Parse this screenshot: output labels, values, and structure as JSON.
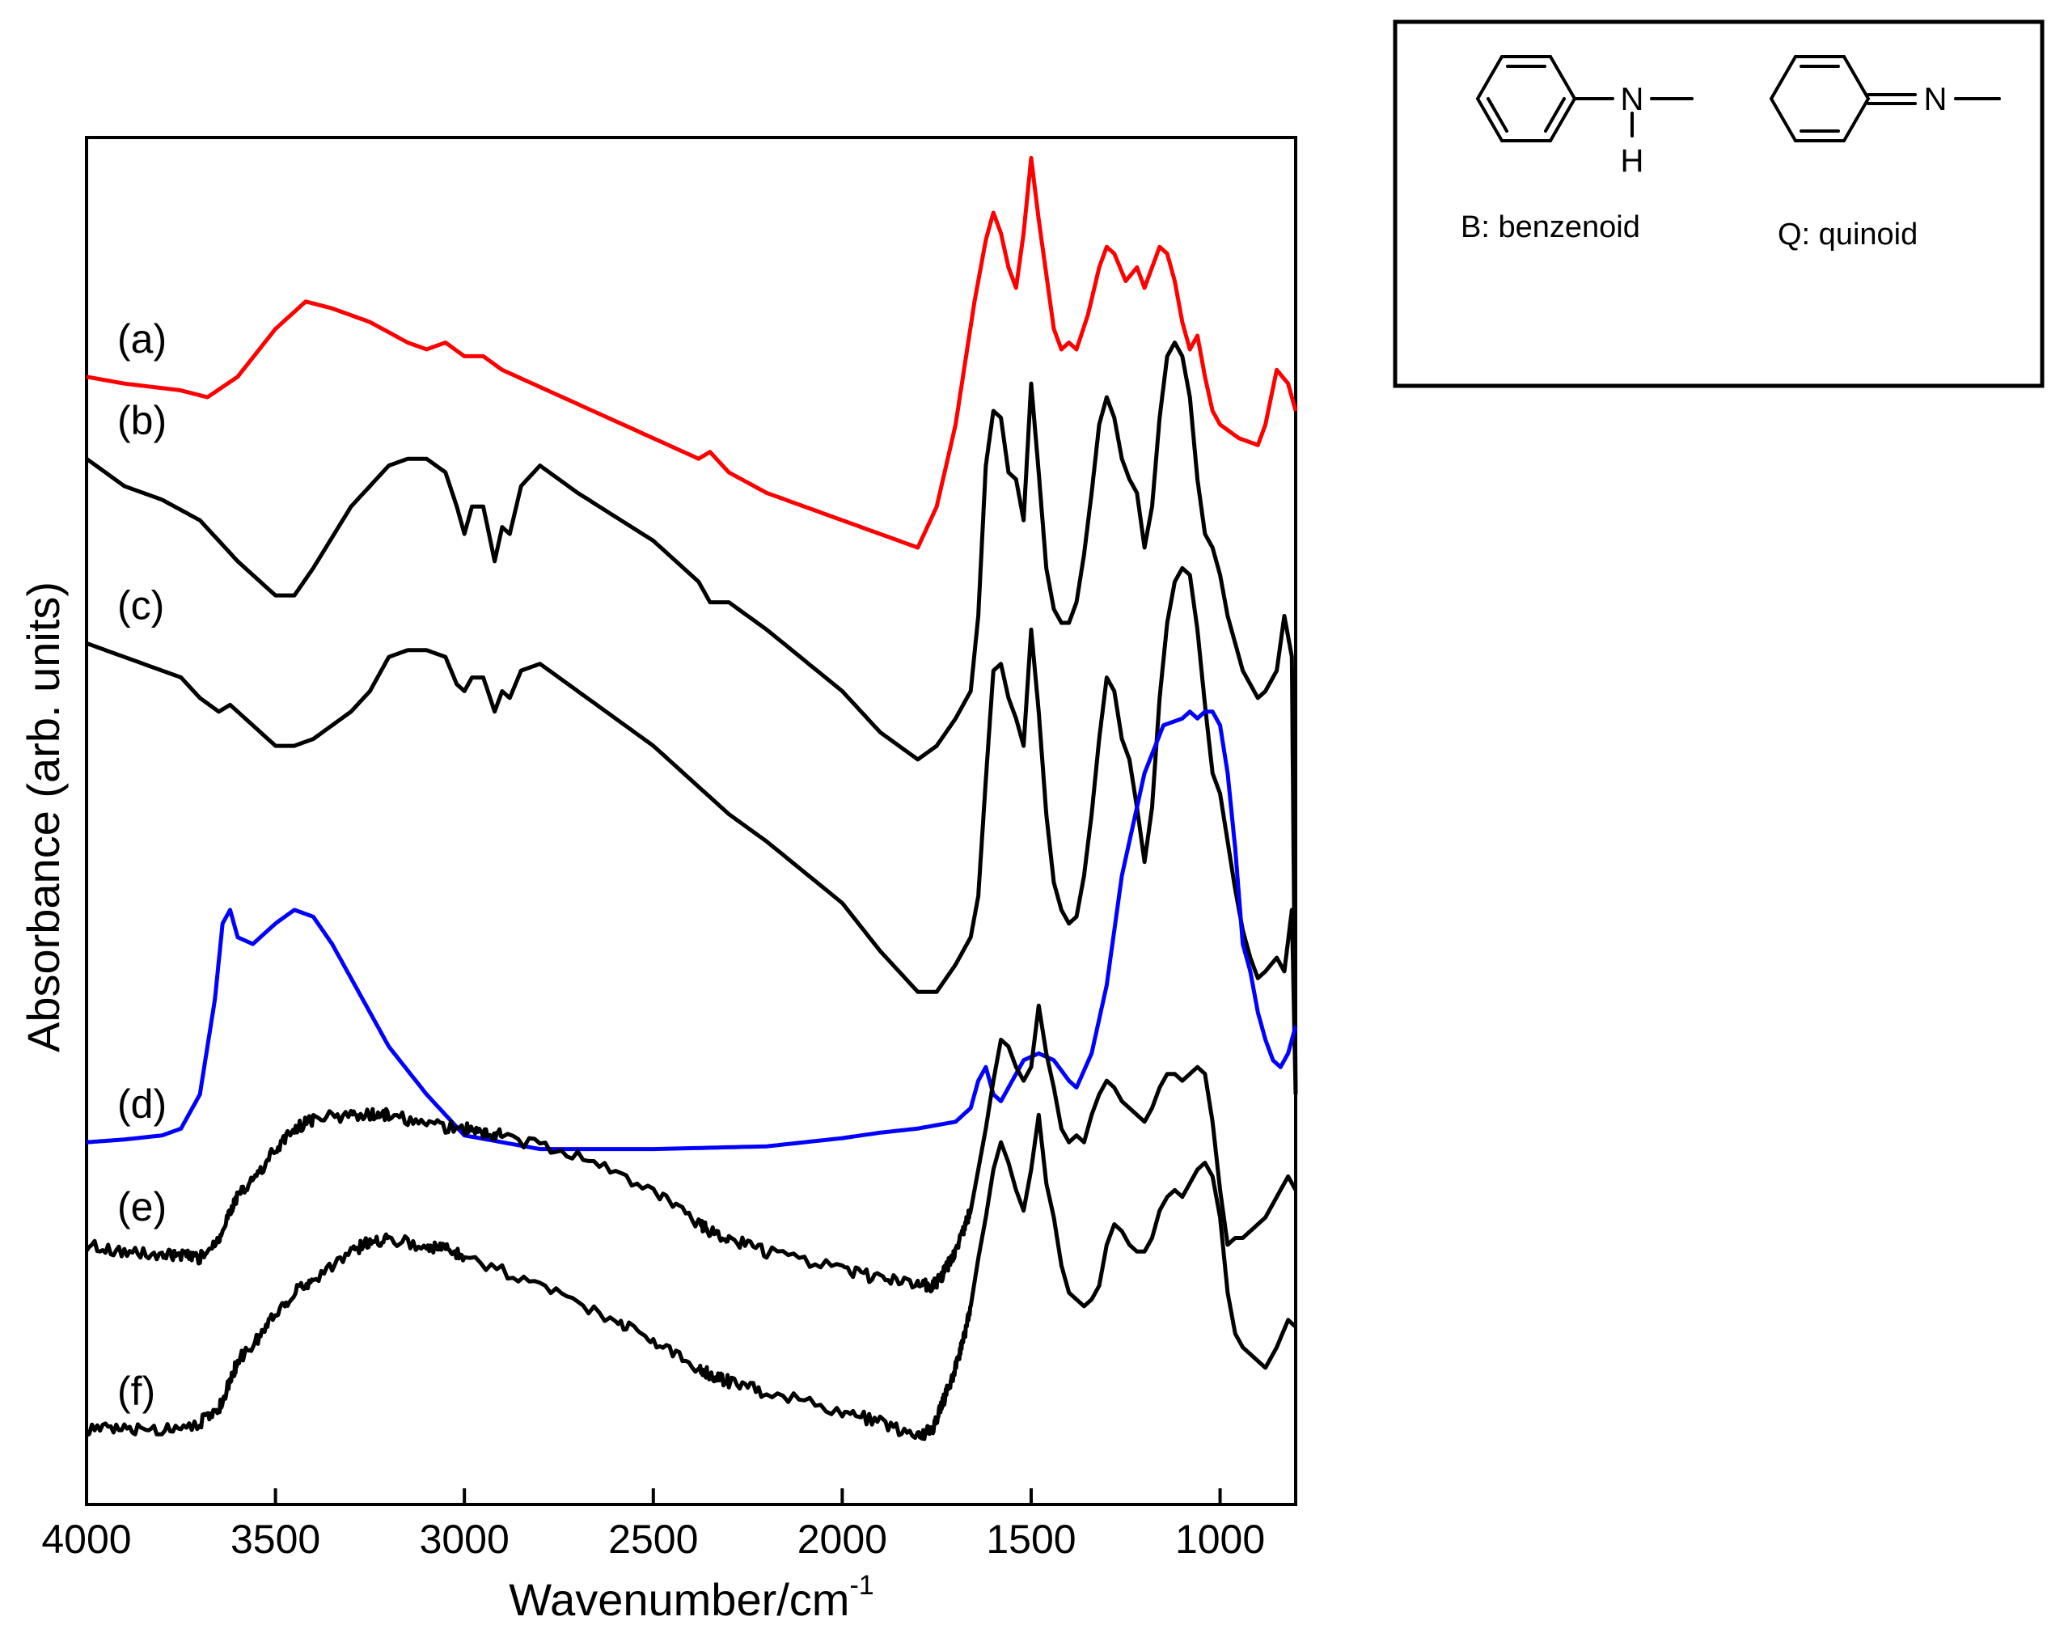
{
  "chart_data": {
    "type": "line",
    "title": "",
    "xlabel": "Wavenumber/cm",
    "xlabel_sup": "-1",
    "ylabel": "Absorbance (arb. units)",
    "x_reversed": true,
    "xlim": [
      4000,
      800
    ],
    "ylim": [
      0,
      10
    ],
    "y_ticks_shown": false,
    "grid": false,
    "x_ticks": [
      4000,
      3500,
      3000,
      2500,
      2000,
      1500,
      1000
    ],
    "x_tick_labels": [
      "4000",
      "3500",
      "3000",
      "2500",
      "2000",
      "1500",
      "1000"
    ],
    "series": [
      {
        "label": "(a)",
        "color": "#ff0000",
        "noisy": false,
        "x": [
          4000,
          3900,
          3750,
          3680,
          3600,
          3500,
          3420,
          3350,
          3250,
          3150,
          3100,
          3050,
          3000,
          2950,
          2900,
          2860,
          2700,
          2500,
          2380,
          2350,
          2300,
          2200,
          2100,
          2000,
          1900,
          1800,
          1750,
          1700,
          1650,
          1620,
          1600,
          1580,
          1560,
          1540,
          1520,
          1500,
          1480,
          1460,
          1440,
          1420,
          1400,
          1380,
          1350,
          1320,
          1300,
          1280,
          1250,
          1220,
          1200,
          1180,
          1160,
          1140,
          1120,
          1100,
          1080,
          1060,
          1040,
          1020,
          1000,
          950,
          900,
          880,
          850,
          820,
          800
        ],
        "y": [
          8.25,
          8.2,
          8.15,
          8.1,
          8.25,
          8.6,
          8.8,
          8.75,
          8.65,
          8.5,
          8.45,
          8.5,
          8.4,
          8.4,
          8.3,
          8.25,
          8.05,
          7.8,
          7.65,
          7.7,
          7.55,
          7.4,
          7.3,
          7.2,
          7.1,
          7.0,
          7.3,
          7.9,
          8.8,
          9.25,
          9.45,
          9.3,
          9.05,
          8.9,
          9.3,
          9.85,
          9.4,
          9.0,
          8.6,
          8.45,
          8.5,
          8.45,
          8.7,
          9.05,
          9.2,
          9.15,
          8.95,
          9.05,
          8.9,
          9.05,
          9.2,
          9.15,
          8.95,
          8.65,
          8.45,
          8.55,
          8.25,
          8.0,
          7.9,
          7.8,
          7.75,
          7.9,
          8.3,
          8.2,
          8.0
        ]
      },
      {
        "label": "(b)",
        "color": "#000000",
        "noisy": false,
        "x": [
          4000,
          3900,
          3800,
          3700,
          3600,
          3500,
          3450,
          3400,
          3300,
          3200,
          3150,
          3100,
          3050,
          3020,
          3000,
          2980,
          2950,
          2920,
          2900,
          2880,
          2850,
          2800,
          2750,
          2700,
          2500,
          2380,
          2350,
          2300,
          2200,
          2000,
          1900,
          1850,
          1800,
          1750,
          1700,
          1660,
          1640,
          1620,
          1600,
          1580,
          1560,
          1540,
          1520,
          1500,
          1480,
          1460,
          1440,
          1420,
          1400,
          1380,
          1360,
          1340,
          1320,
          1300,
          1280,
          1260,
          1240,
          1220,
          1200,
          1180,
          1160,
          1140,
          1120,
          1100,
          1080,
          1060,
          1040,
          1020,
          1000,
          980,
          960,
          940,
          920,
          900,
          880,
          850,
          830,
          810,
          800
        ],
        "y": [
          7.65,
          7.45,
          7.35,
          7.2,
          6.9,
          6.65,
          6.65,
          6.85,
          7.3,
          7.6,
          7.65,
          7.65,
          7.55,
          7.3,
          7.1,
          7.3,
          7.3,
          6.9,
          7.15,
          7.1,
          7.45,
          7.6,
          7.5,
          7.4,
          7.05,
          6.75,
          6.6,
          6.6,
          6.4,
          5.95,
          5.65,
          5.55,
          5.45,
          5.55,
          5.75,
          5.95,
          6.5,
          7.6,
          8.0,
          7.95,
          7.55,
          7.5,
          7.2,
          8.2,
          7.55,
          6.85,
          6.55,
          6.45,
          6.45,
          6.6,
          6.95,
          7.4,
          7.9,
          8.1,
          7.95,
          7.65,
          7.5,
          7.4,
          7.0,
          7.3,
          7.95,
          8.4,
          8.5,
          8.4,
          8.1,
          7.5,
          7.1,
          7.0,
          6.8,
          6.5,
          6.3,
          6.1,
          6.0,
          5.9,
          5.95,
          6.1,
          6.5,
          6.2,
          3.0
        ]
      },
      {
        "label": "(c)",
        "color": "#000000",
        "noisy": false,
        "x": [
          4000,
          3900,
          3800,
          3750,
          3700,
          3650,
          3620,
          3600,
          3500,
          3450,
          3400,
          3300,
          3250,
          3200,
          3150,
          3100,
          3050,
          3020,
          3000,
          2980,
          2950,
          2920,
          2900,
          2880,
          2850,
          2800,
          2750,
          2700,
          2500,
          2380,
          2300,
          2200,
          2000,
          1900,
          1850,
          1800,
          1750,
          1700,
          1660,
          1640,
          1620,
          1600,
          1580,
          1560,
          1540,
          1520,
          1500,
          1480,
          1460,
          1440,
          1420,
          1400,
          1380,
          1360,
          1340,
          1320,
          1300,
          1280,
          1260,
          1240,
          1220,
          1200,
          1180,
          1160,
          1140,
          1120,
          1100,
          1080,
          1060,
          1040,
          1020,
          1000,
          980,
          960,
          940,
          920,
          900,
          880,
          850,
          830,
          810,
          800
        ],
        "y": [
          6.3,
          6.2,
          6.1,
          6.05,
          5.9,
          5.8,
          5.85,
          5.8,
          5.55,
          5.55,
          5.6,
          5.8,
          5.95,
          6.2,
          6.25,
          6.25,
          6.2,
          6.0,
          5.95,
          6.05,
          6.05,
          5.8,
          5.95,
          5.9,
          6.1,
          6.15,
          6.05,
          5.95,
          5.55,
          5.25,
          5.05,
          4.85,
          4.4,
          4.05,
          3.9,
          3.75,
          3.75,
          3.95,
          4.15,
          4.45,
          5.3,
          6.1,
          6.15,
          5.9,
          5.75,
          5.55,
          6.4,
          5.8,
          5.05,
          4.55,
          4.35,
          4.25,
          4.3,
          4.6,
          5.05,
          5.6,
          6.05,
          5.95,
          5.6,
          5.45,
          5.1,
          4.7,
          5.1,
          5.9,
          6.45,
          6.75,
          6.85,
          6.8,
          6.4,
          5.85,
          5.35,
          5.2,
          4.85,
          4.5,
          4.2,
          4.0,
          3.85,
          3.9,
          4.0,
          3.9,
          4.35,
          3.0
        ]
      },
      {
        "label": "(d)",
        "color": "#0000ff",
        "noisy": false,
        "x": [
          4000,
          3900,
          3800,
          3750,
          3700,
          3660,
          3640,
          3620,
          3600,
          3560,
          3500,
          3450,
          3400,
          3350,
          3300,
          3250,
          3200,
          3100,
          3000,
          2800,
          2500,
          2200,
          2000,
          1900,
          1800,
          1700,
          1660,
          1640,
          1620,
          1600,
          1580,
          1560,
          1520,
          1480,
          1440,
          1400,
          1380,
          1340,
          1300,
          1260,
          1200,
          1150,
          1100,
          1080,
          1060,
          1040,
          1020,
          1000,
          980,
          960,
          950,
          940,
          920,
          900,
          880,
          860,
          840,
          820,
          800
        ],
        "y": [
          2.65,
          2.67,
          2.7,
          2.75,
          3.0,
          3.7,
          4.25,
          4.35,
          4.15,
          4.1,
          4.25,
          4.35,
          4.3,
          4.1,
          3.85,
          3.6,
          3.35,
          3.0,
          2.7,
          2.6,
          2.6,
          2.62,
          2.68,
          2.72,
          2.75,
          2.8,
          2.9,
          3.1,
          3.2,
          3.0,
          2.95,
          3.05,
          3.25,
          3.3,
          3.25,
          3.1,
          3.05,
          3.3,
          3.8,
          4.6,
          5.35,
          5.7,
          5.75,
          5.8,
          5.75,
          5.8,
          5.8,
          5.7,
          5.35,
          4.8,
          4.45,
          4.1,
          3.9,
          3.6,
          3.4,
          3.25,
          3.2,
          3.3,
          3.5
        ]
      },
      {
        "label": "(e)",
        "color": "#000000",
        "noisy": true,
        "x": [
          4000,
          3900,
          3800,
          3750,
          3700,
          3650,
          3620,
          3600,
          3550,
          3500,
          3450,
          3400,
          3300,
          3250,
          3200,
          3100,
          3000,
          2950,
          2900,
          2700,
          2500,
          2380,
          2350,
          2300,
          2200,
          2000,
          1900,
          1800,
          1760,
          1740,
          1720,
          1700,
          1680,
          1660,
          1640,
          1620,
          1600,
          1580,
          1560,
          1540,
          1520,
          1500,
          1480,
          1460,
          1440,
          1420,
          1400,
          1380,
          1360,
          1340,
          1320,
          1300,
          1280,
          1260,
          1240,
          1220,
          1200,
          1180,
          1160,
          1140,
          1120,
          1100,
          1080,
          1060,
          1040,
          1020,
          1000,
          980,
          960,
          940,
          920,
          900,
          880,
          850,
          820,
          800
        ],
        "y": [
          1.9,
          1.85,
          1.82,
          1.82,
          1.8,
          1.95,
          2.15,
          2.25,
          2.4,
          2.6,
          2.75,
          2.82,
          2.85,
          2.85,
          2.85,
          2.78,
          2.75,
          2.72,
          2.7,
          2.55,
          2.3,
          2.05,
          2.0,
          1.95,
          1.85,
          1.72,
          1.65,
          1.62,
          1.6,
          1.65,
          1.75,
          1.85,
          2.0,
          2.15,
          2.45,
          2.75,
          3.1,
          3.4,
          3.35,
          3.2,
          3.1,
          3.2,
          3.65,
          3.3,
          3.05,
          2.75,
          2.65,
          2.7,
          2.65,
          2.85,
          3.0,
          3.1,
          3.05,
          2.95,
          2.9,
          2.85,
          2.8,
          2.9,
          3.05,
          3.15,
          3.15,
          3.1,
          3.15,
          3.2,
          3.15,
          2.8,
          2.3,
          1.9,
          1.95,
          1.95,
          2.0,
          2.05,
          2.1,
          2.25,
          2.4,
          2.3
        ]
      },
      {
        "label": "(f)",
        "color": "#000000",
        "noisy": true,
        "x": [
          4000,
          3900,
          3800,
          3700,
          3650,
          3620,
          3600,
          3550,
          3500,
          3450,
          3400,
          3300,
          3250,
          3200,
          3100,
          3050,
          3000,
          2800,
          2600,
          2500,
          2380,
          2350,
          2300,
          2200,
          2000,
          1900,
          1800,
          1760,
          1740,
          1720,
          1700,
          1680,
          1660,
          1640,
          1620,
          1600,
          1580,
          1560,
          1540,
          1520,
          1500,
          1480,
          1460,
          1440,
          1420,
          1400,
          1380,
          1360,
          1340,
          1320,
          1300,
          1280,
          1260,
          1240,
          1220,
          1200,
          1180,
          1160,
          1140,
          1120,
          1100,
          1080,
          1060,
          1040,
          1020,
          1000,
          980,
          960,
          940,
          920,
          900,
          880,
          850,
          820,
          800
        ],
        "y": [
          0.55,
          0.55,
          0.55,
          0.6,
          0.7,
          0.9,
          1.05,
          1.2,
          1.4,
          1.55,
          1.65,
          1.85,
          1.92,
          1.95,
          1.88,
          1.88,
          1.82,
          1.6,
          1.35,
          1.2,
          1.0,
          0.95,
          0.9,
          0.82,
          0.68,
          0.6,
          0.5,
          0.55,
          0.7,
          0.85,
          1.0,
          1.2,
          1.45,
          1.8,
          2.1,
          2.45,
          2.65,
          2.5,
          2.3,
          2.15,
          2.45,
          2.85,
          2.35,
          2.1,
          1.75,
          1.55,
          1.5,
          1.45,
          1.5,
          1.6,
          1.9,
          2.05,
          2.0,
          1.9,
          1.85,
          1.85,
          1.95,
          2.15,
          2.25,
          2.3,
          2.25,
          2.35,
          2.45,
          2.5,
          2.4,
          2.1,
          1.55,
          1.25,
          1.15,
          1.1,
          1.05,
          1.0,
          1.15,
          1.35,
          1.3
        ]
      }
    ]
  },
  "inset": {
    "structures": [
      {
        "atom_label": "N",
        "sub_label": "H",
        "caption": "B: benzenoid"
      },
      {
        "atom_label": "N",
        "caption": "Q: quinoid"
      }
    ]
  }
}
